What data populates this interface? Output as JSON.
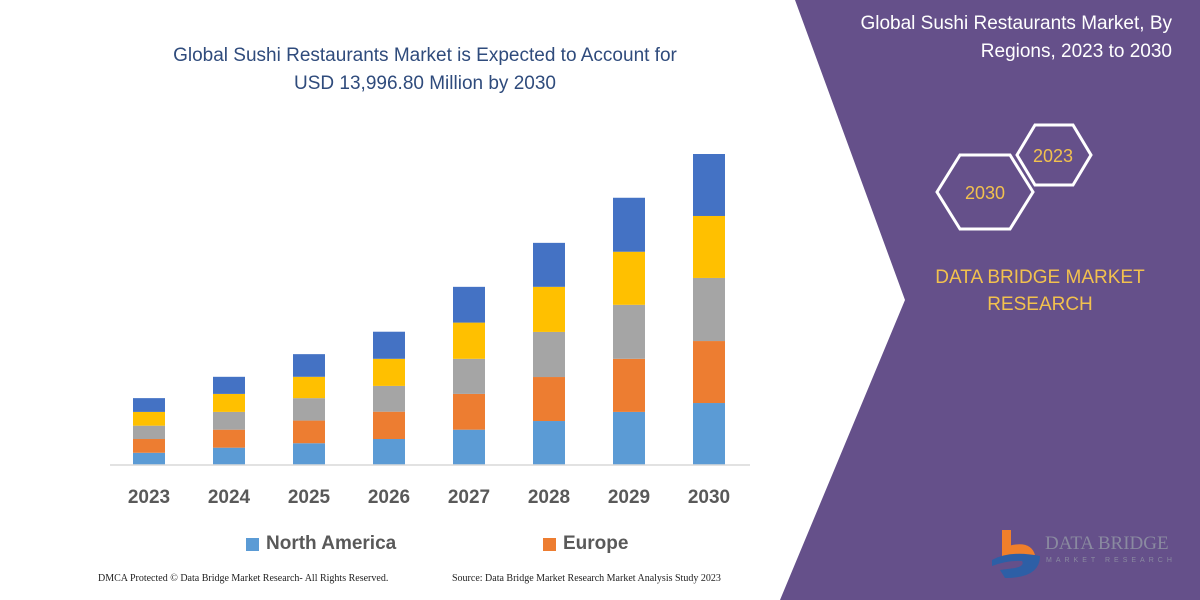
{
  "header": {
    "title_line1": "Global Sushi Restaurants Market is Expected to Account for",
    "title_line2": "USD 13,996.80 Million by 2030"
  },
  "panel": {
    "title_line1": "Global Sushi Restaurants Market, By",
    "title_line2": "Regions, 2023 to 2030",
    "hex_labels": [
      "2023",
      "2030"
    ],
    "brand_line1": "DATA BRIDGE MARKET",
    "brand_line2": "RESEARCH",
    "logo_text": "DATA BRIDGE",
    "logo_sub": "MARKET RESEARCH",
    "bg_color": "#65508a",
    "accent_color": "#f2c14e"
  },
  "footer": {
    "left": "DMCA Protected © Data Bridge Market Research-  All Rights Reserved.",
    "right": "Source: Data Bridge Market Research  Market Analysis Study 2023"
  },
  "chart_data": {
    "type": "bar",
    "stacked": true,
    "title": "",
    "xlabel": "",
    "ylabel": "",
    "grid": false,
    "y_axis_shown": false,
    "legend_position": "bottom",
    "categories": [
      "2023",
      "2024",
      "2025",
      "2026",
      "2027",
      "2028",
      "2029",
      "2030"
    ],
    "series": [
      {
        "name": "North America",
        "color": "#5b9bd5",
        "values": [
          550,
          780,
          980,
          1170,
          1590,
          1980,
          2390,
          2790
        ]
      },
      {
        "name": "Europe",
        "color": "#ed7d31",
        "values": [
          620,
          810,
          1020,
          1230,
          1610,
          1980,
          2390,
          2790
        ]
      },
      {
        "color": "#a5a5a5",
        "values": [
          600,
          800,
          1010,
          1160,
          1580,
          2030,
          2430,
          2840
        ]
      },
      {
        "color": "#ffc000",
        "values": [
          620,
          810,
          960,
          1220,
          1630,
          2030,
          2390,
          2790
        ]
      },
      {
        "color": "#4472c4",
        "values": [
          620,
          770,
          1020,
          1220,
          1610,
          1980,
          2430,
          2790
        ]
      }
    ]
  }
}
